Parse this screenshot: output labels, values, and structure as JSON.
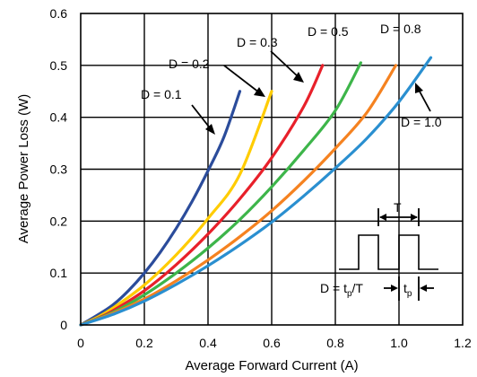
{
  "chart_data": {
    "type": "line",
    "title": "",
    "xlabel": "Average Forward Current (A)",
    "ylabel": "Average Power Loss (W)",
    "xlim": [
      0,
      1.2
    ],
    "ylim": [
      0,
      0.6
    ],
    "x_ticks": [
      "0",
      "0.2",
      "0.4",
      "0.6",
      "0.8",
      "1.0",
      "1.2"
    ],
    "y_ticks": [
      "0",
      "0.1",
      "0.2",
      "0.3",
      "0.4",
      "0.5",
      "0.6"
    ],
    "grid": true,
    "series": [
      {
        "name": "D = 0.1",
        "color": "#2b4c9b",
        "x": [
          0,
          0.05,
          0.1,
          0.15,
          0.2,
          0.25,
          0.3,
          0.35,
          0.4,
          0.45,
          0.5
        ],
        "y": [
          0,
          0.018,
          0.038,
          0.066,
          0.1,
          0.14,
          0.186,
          0.238,
          0.297,
          0.362,
          0.45
        ]
      },
      {
        "name": "D = 0.2",
        "color": "#ffcc00",
        "x": [
          0,
          0.05,
          0.1,
          0.2,
          0.3,
          0.4,
          0.5,
          0.6
        ],
        "y": [
          0,
          0.014,
          0.032,
          0.077,
          0.135,
          0.205,
          0.29,
          0.45
        ]
      },
      {
        "name": "D = 0.3",
        "color": "#e8202a",
        "x": [
          0,
          0.05,
          0.1,
          0.2,
          0.3,
          0.4,
          0.5,
          0.6,
          0.7,
          0.76
        ],
        "y": [
          0,
          0.012,
          0.027,
          0.066,
          0.116,
          0.175,
          0.243,
          0.322,
          0.42,
          0.5
        ]
      },
      {
        "name": "D = 0.5",
        "color": "#3db54a",
        "x": [
          0,
          0.1,
          0.2,
          0.3,
          0.4,
          0.5,
          0.6,
          0.7,
          0.8,
          0.88
        ],
        "y": [
          0,
          0.024,
          0.058,
          0.1,
          0.148,
          0.203,
          0.266,
          0.336,
          0.413,
          0.505
        ]
      },
      {
        "name": "D = 0.8",
        "color": "#f58220",
        "x": [
          0,
          0.1,
          0.2,
          0.3,
          0.4,
          0.5,
          0.6,
          0.7,
          0.8,
          0.9,
          0.99
        ],
        "y": [
          0,
          0.022,
          0.05,
          0.085,
          0.125,
          0.17,
          0.22,
          0.277,
          0.34,
          0.41,
          0.5
        ]
      },
      {
        "name": "D = 1.0",
        "color": "#2a8fd0",
        "x": [
          0,
          0.1,
          0.2,
          0.3,
          0.4,
          0.5,
          0.6,
          0.7,
          0.8,
          0.9,
          1.0,
          1.1
        ],
        "y": [
          0,
          0.02,
          0.046,
          0.078,
          0.114,
          0.154,
          0.198,
          0.248,
          0.302,
          0.36,
          0.43,
          0.515
        ]
      }
    ],
    "annotations": {
      "labels": [
        {
          "series": 0,
          "text": "D = 0.1"
        },
        {
          "series": 1,
          "text": "D = 0.2"
        },
        {
          "series": 2,
          "text": "D = 0.3"
        },
        {
          "series": 3,
          "text": "D = 0.5"
        },
        {
          "series": 4,
          "text": "D = 0.8"
        },
        {
          "series": 5,
          "text": "D = 1.0"
        }
      ],
      "inset": {
        "period_label": "T",
        "duty_main": "D = t",
        "duty_sub": "p",
        "duty_tail": "/T",
        "pulse_main": "t",
        "pulse_sub": "p"
      }
    }
  }
}
